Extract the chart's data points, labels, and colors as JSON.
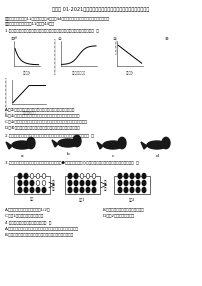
{
  "title": "必刷卷 01·2021年中考科学考前信息必刷卷（浙江省温州市专用）",
  "line1": "一、选择题（本题共11小题，每小题4分，共44分，每小题的某一个真项是正确的，不选、",
  "line2": "多选、错选均不给分（共11题，共44分）",
  "q1": "1.细胞结构与功能相互适应之间的对应关系，下列图示中对应关系不正确的是（  ）",
  "q1a": "A.图①中，随着反应时间增大，底物与酶结合越来越多的关系",
  "q1b": "B.图②中，随着稳定酶液的量增加，溶液中酶的总量也增大的关系",
  "q1c": "C.图③中，一定量的底物短时间内反应，加酶量越多生成物量越多的关系",
  "q1d": "D.图④中，光照强度增强到一定程度后，光合速率不再增大的关系",
  "q2": "2.与同种鸟类相比较，渡过了一些不一样的特征，下列哪个选项是正确的（  ）",
  "q3": "3.如图是某生物学家研究某种群中的亲代和子代（●代表显性亲子，○代表隐性亲子），下列相关说法错误的是（  ）",
  "q3a": "A.亲代的亲子中显性的比例大于1/2。",
  "q3b": "B.种群结构没有的亲子比例发生变化",
  "q3c": "C.比例1代的亲子比例与亲代相同",
  "q3d": "D.比例2代发生了种群进化",
  "q4": "4.下列关于纯合子与杂合子的鉴别（  ）",
  "q4a": "A.磁场遗传定律下，先后测定其后代比例，再确定亲代基因型判断",
  "q4b": "B.先测定后代个体比例，发生性状分离，那么先代就是纯合子",
  "bg": "#ffffff",
  "fg": "#000000",
  "gray": "#888888"
}
